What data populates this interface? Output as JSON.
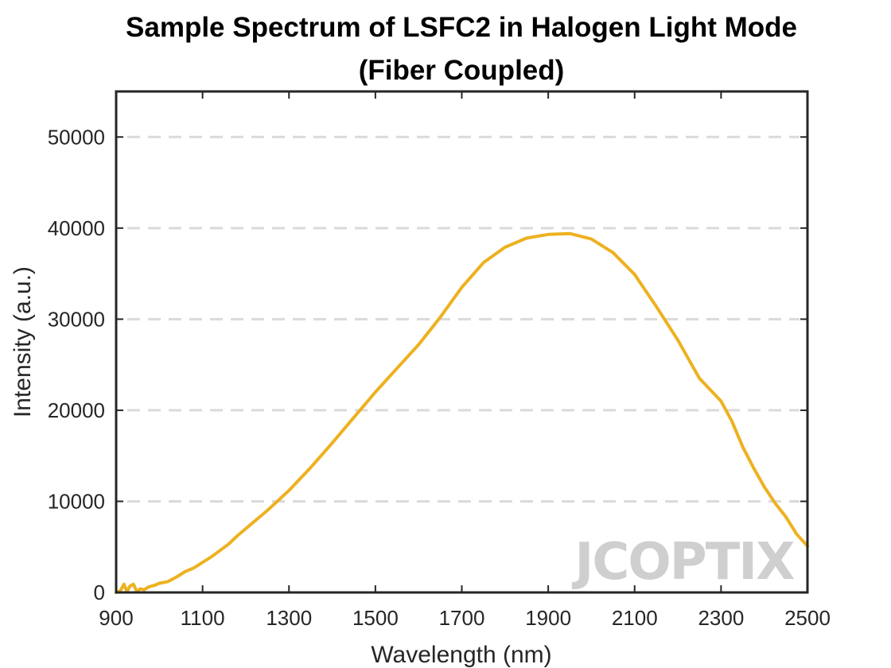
{
  "chart_data": {
    "type": "line",
    "title_line1": "Sample Spectrum of LSFC2 in Halogen Light Mode",
    "title_line2": "(Fiber Coupled)",
    "xlabel": "Wavelength (nm)",
    "ylabel": "Intensity (a.u.)",
    "xlim": [
      900,
      2500
    ],
    "ylim": [
      0,
      55000
    ],
    "xticks": [
      900,
      1100,
      1300,
      1500,
      1700,
      1900,
      2100,
      2300,
      2500
    ],
    "yticks": [
      0,
      10000,
      20000,
      30000,
      40000,
      50000
    ],
    "grid": "horizontal dashed",
    "line_color": "#EDB120",
    "watermark": "JCOPTIX",
    "series": [
      {
        "x": [
          900,
          910,
          918,
          925,
          932,
          940,
          948,
          956,
          965,
          975,
          990,
          1000,
          1020,
          1040,
          1060,
          1080,
          1100,
          1120,
          1140,
          1160,
          1180,
          1200,
          1250,
          1300,
          1350,
          1400,
          1450,
          1500,
          1550,
          1600,
          1650,
          1700,
          1750,
          1800,
          1850,
          1900,
          1950,
          2000,
          2050,
          2100,
          2150,
          2200,
          2250,
          2300,
          2325,
          2350,
          2375,
          2400,
          2425,
          2450,
          2475,
          2500
        ],
        "y": [
          0,
          200,
          900,
          100,
          700,
          900,
          100,
          400,
          300,
          600,
          800,
          1000,
          1200,
          1700,
          2300,
          2700,
          3300,
          3900,
          4600,
          5300,
          6200,
          7000,
          9000,
          11200,
          13700,
          16400,
          19200,
          22000,
          24600,
          27200,
          30200,
          33500,
          36200,
          37900,
          38900,
          39300,
          39400,
          38800,
          37300,
          34900,
          31400,
          27700,
          23500,
          21000,
          18800,
          16000,
          13700,
          11600,
          9800,
          8300,
          6400,
          5100
        ]
      }
    ]
  }
}
